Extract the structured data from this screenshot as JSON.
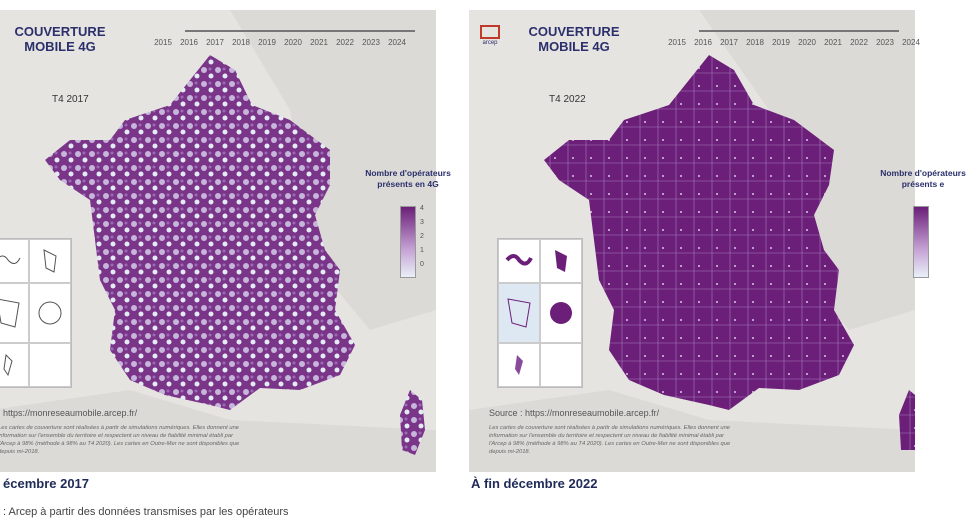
{
  "panels": [
    {
      "title_line1": "COUVERTURE",
      "title_line2": "MOBILE 4G",
      "period": "T4 2017",
      "years": [
        "2015",
        "2016",
        "2017",
        "2018",
        "2019",
        "2020",
        "2021",
        "2022",
        "2023",
        "2024"
      ],
      "legend_title": "Nombre d'opérateurs présents en 4G",
      "legend_ticks": [
        "4",
        "3",
        "2",
        "1",
        "0"
      ],
      "source": ": https://monreseaumobile.arcep.fr/",
      "notes": "Les cartes de couverture sont réalisées à partir de simulations numériques. Elles donnent une information sur l'ensemble du territoire et respectent un niveau de fiabilité minimal établi par l'Arcep à 98% (méthode à 98% au T4 2020). Les cartes en Outre-Mer ne sont disponibles que depuis mi-2018.",
      "caption": "écembre 2017"
    },
    {
      "title_line1": "COUVERTURE",
      "title_line2": "MOBILE 4G",
      "logo_text": "arcep",
      "period": "T4 2022",
      "years": [
        "2015",
        "2016",
        "2017",
        "2018",
        "2019",
        "2020",
        "2021",
        "2022",
        "2023",
        "2024"
      ],
      "legend_title": "Nombre d'opérateurs présents e",
      "source": "Source : https://monreseaumobile.arcep.fr/",
      "notes": "Les cartes de couverture sont réalisées à partir de simulations numériques. Elles donnent une information sur l'ensemble du territoire et respectent un niveau de fiabilité minimal établi par l'Arcep à 98% (méthode à 98% au T4 2020). Les cartes en Outre-Mer ne sont disponibles que depuis mi-2018.",
      "caption": "À fin décembre 2022"
    }
  ],
  "bottom_source": ": Arcep à partir des données transmises par les opérateurs",
  "colors": {
    "dark_purple": "#6b1f78",
    "mid_purple": "#a26ab8",
    "light_blue": "#dde8f3",
    "land_gray": "#e6e4e1"
  },
  "icons": [
    "france-map-2017",
    "france-map-2022",
    "arcep-logo-icon",
    "legend-gradient"
  ]
}
